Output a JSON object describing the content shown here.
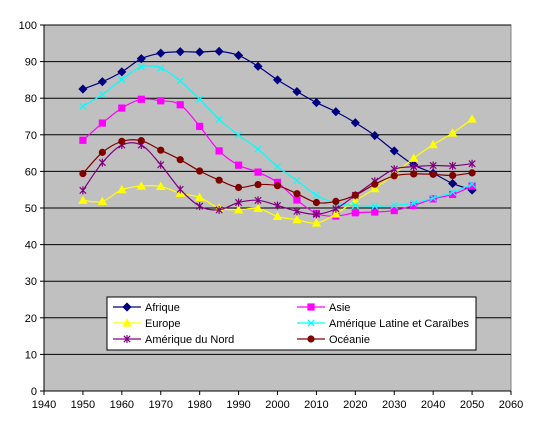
{
  "chart_data": {
    "type": "line",
    "title": "",
    "xlabel": "",
    "ylabel": "",
    "xlim": [
      1940,
      2060
    ],
    "ylim": [
      0,
      100
    ],
    "x_ticks": [
      1940,
      1950,
      1960,
      1970,
      1980,
      1990,
      2000,
      2010,
      2020,
      2030,
      2040,
      2050,
      2060
    ],
    "y_ticks": [
      0,
      10,
      20,
      30,
      40,
      50,
      60,
      70,
      80,
      90,
      100
    ],
    "grid": "horizontal",
    "plot_background": "#c0c0c0",
    "legend_position": "lower-center inside plot",
    "x": [
      1950,
      1955,
      1960,
      1965,
      1970,
      1975,
      1980,
      1985,
      1990,
      1995,
      2000,
      2005,
      2010,
      2015,
      2020,
      2025,
      2030,
      2035,
      2040,
      2045,
      2050
    ],
    "series": [
      {
        "name": "Afrique",
        "color": "#000080",
        "marker": "diamond",
        "values": [
          82.5,
          84.5,
          87.2,
          90.8,
          92.3,
          92.7,
          92.6,
          92.8,
          91.7,
          88.7,
          85.0,
          81.8,
          78.8,
          76.3,
          73.3,
          69.8,
          65.6,
          61.8,
          59.5,
          56.7,
          54.9
        ]
      },
      {
        "name": "Asie",
        "color": "#ff00ff",
        "marker": "square",
        "values": [
          68.5,
          73.2,
          77.3,
          79.7,
          79.3,
          78.2,
          72.3,
          65.6,
          61.7,
          59.8,
          57.0,
          52.2,
          48.5,
          47.8,
          48.7,
          48.9,
          49.3,
          50.7,
          52.5,
          53.7,
          56.0
        ]
      },
      {
        "name": "Europe",
        "color": "#ffff00",
        "marker": "triangle",
        "values": [
          52.1,
          51.8,
          55.0,
          56.0,
          55.9,
          54.0,
          52.9,
          50.0,
          49.5,
          49.9,
          47.7,
          46.8,
          45.9,
          48.4,
          52.0,
          55.3,
          59.3,
          63.6,
          67.3,
          70.5,
          74.3
        ]
      },
      {
        "name": "Amérique Latine et Caraïbes",
        "color": "#00ffff",
        "marker": "cross",
        "values": [
          77.8,
          81.0,
          85.1,
          88.6,
          88.2,
          84.7,
          79.7,
          74.2,
          69.9,
          66.1,
          61.3,
          57.5,
          53.5,
          51.3,
          50.7,
          50.5,
          50.7,
          51.3,
          52.7,
          54.3,
          56.5
        ]
      },
      {
        "name": "Amérique du Nord",
        "color": "#800080",
        "marker": "star",
        "values": [
          54.8,
          62.4,
          67.2,
          67.2,
          61.8,
          55.1,
          50.5,
          49.5,
          51.5,
          52.1,
          50.7,
          49.1,
          48.3,
          49.8,
          53.5,
          57.3,
          60.6,
          61.3,
          61.6,
          61.5,
          62.1
        ]
      },
      {
        "name": "Océanie",
        "color": "#800000",
        "marker": "circle",
        "values": [
          59.4,
          65.2,
          68.2,
          68.4,
          65.8,
          63.2,
          60.1,
          57.6,
          55.6,
          56.4,
          56.1,
          53.9,
          51.5,
          51.8,
          53.5,
          56.5,
          58.8,
          59.3,
          59.2,
          58.9,
          59.6
        ]
      }
    ]
  }
}
